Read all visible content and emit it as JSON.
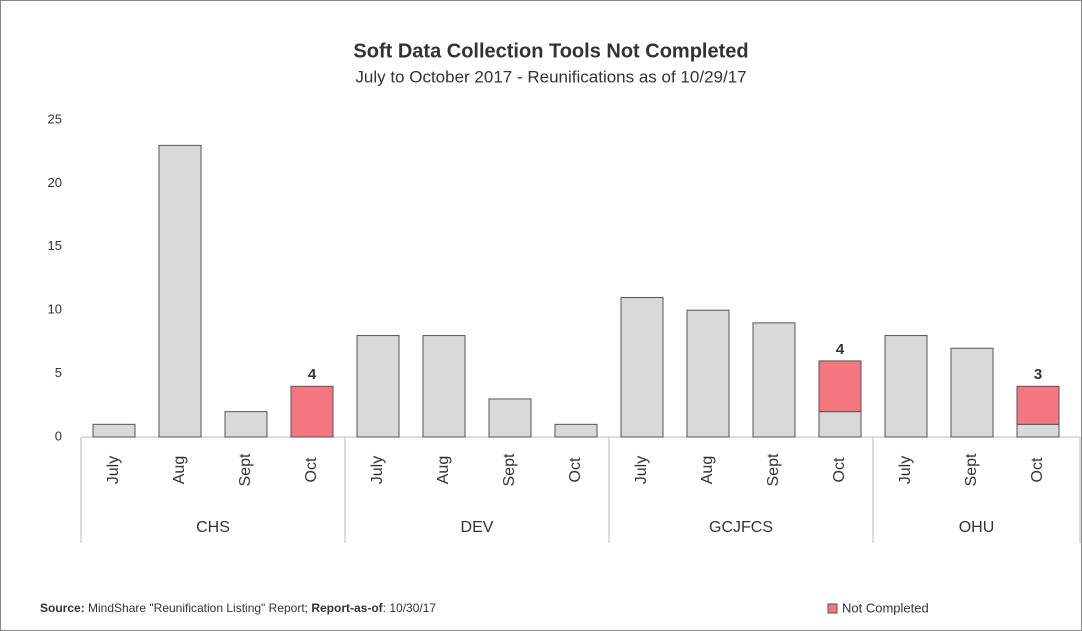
{
  "chart_data": {
    "type": "stacked_bar",
    "title": "Soft Data Collection Tools Not Completed",
    "subtitle": "July to October 2017 - Reunifications as of 10/29/17",
    "categories": [
      "July",
      "Aug",
      "Sept",
      "Oct",
      "July",
      "Aug",
      "Sept",
      "Oct",
      "July",
      "Aug",
      "Sept",
      "Oct",
      "July",
      "Sept",
      "Oct"
    ],
    "groups": [
      "CHS",
      "CHS",
      "CHS",
      "CHS",
      "DEV",
      "DEV",
      "DEV",
      "DEV",
      "GCJFCS",
      "GCJFCS",
      "GCJFCS",
      "GCJFCS",
      "OHU",
      "OHU",
      "OHU"
    ],
    "series": [
      {
        "color": "#d9d9d9",
        "values": [
          1,
          23,
          2,
          null,
          8,
          8,
          3,
          1,
          11,
          10,
          9,
          2,
          8,
          7,
          1
        ]
      },
      {
        "name": "Not Completed",
        "color": "#f4777f",
        "data_labels": true,
        "values": [
          null,
          null,
          null,
          4,
          null,
          null,
          null,
          null,
          null,
          null,
          null,
          4,
          null,
          null,
          3
        ]
      }
    ],
    "ylim": [
      0,
      25
    ],
    "yticks": [
      0,
      5,
      10,
      15,
      20,
      25
    ],
    "grid": false,
    "legend": "bottom-right",
    "footnote": [
      "Source:",
      " MindShare \"Reunification Listing\" Report; ",
      "Report-as-of",
      ": 10/30/17"
    ]
  }
}
